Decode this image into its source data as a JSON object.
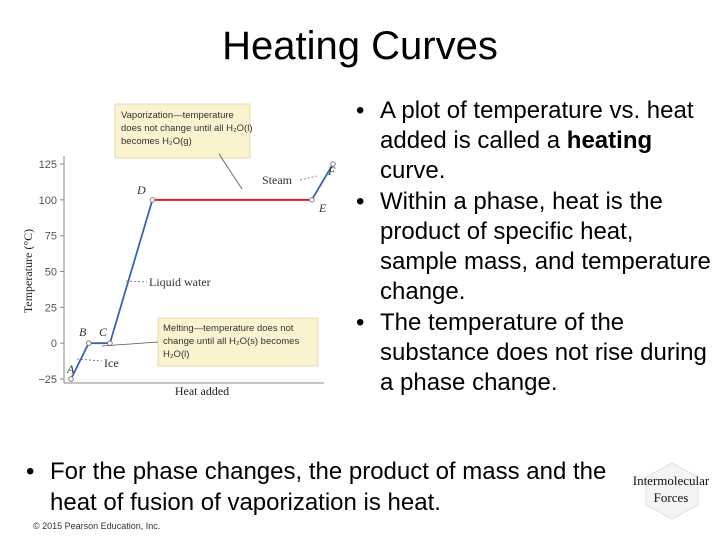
{
  "slide": {
    "title": "Heating Curves",
    "bullets_right": [
      {
        "before": "A plot of temperature vs. heat added is called a ",
        "bold": "heating",
        "after": " curve."
      },
      {
        "before": "Within a phase, heat is the product of specific heat, sample mass, and temperature change.",
        "bold": "",
        "after": ""
      },
      {
        "before": "The temperature of the substance does not rise during a phase change.",
        "bold": "",
        "after": ""
      }
    ],
    "bullet_bottom": "For the phase changes, the product of mass and the heat of fusion of vaporization is heat.",
    "footer": "© 2015 Pearson Education, Inc.",
    "badge": "Intermolecular Forces"
  },
  "figure": {
    "ylabel": "Temperature (°C)",
    "xlabel": "Heat added",
    "y_ticks": [
      "125",
      "100",
      "75",
      "50",
      "25",
      "0",
      "−25"
    ],
    "points": {
      "A": "A",
      "B": "B",
      "C": "C",
      "D": "D",
      "E": "E",
      "F": "F"
    },
    "labels": {
      "steam": "Steam",
      "liquid": "Liquid water",
      "ice": "Ice"
    },
    "callout_vaporization": [
      "Vaporization—temperature",
      "does not change until all H₂O(l)",
      "becomes H₂O(g)"
    ],
    "callout_melting": [
      "Melting—temperature does not",
      "change until all H₂O(s) becomes",
      "H₂O(l)"
    ],
    "colors": {
      "solid_liquid": "#3a62b0",
      "boil": "#d4232b",
      "callout": "#fbf3cf"
    }
  },
  "chart_data": {
    "type": "line",
    "title": "",
    "xlabel": "Heat added",
    "ylabel": "Temperature (°C)",
    "ylim": [
      -25,
      125
    ],
    "y_ticks": [
      125,
      100,
      75,
      50,
      25,
      0,
      -25
    ],
    "series": [
      {
        "x": [
          0,
          1.0,
          2.2,
          4.6,
          13.6,
          14.8
        ],
        "y": [
          -25,
          0,
          0,
          100,
          100,
          125
        ]
      }
    ]
  }
}
